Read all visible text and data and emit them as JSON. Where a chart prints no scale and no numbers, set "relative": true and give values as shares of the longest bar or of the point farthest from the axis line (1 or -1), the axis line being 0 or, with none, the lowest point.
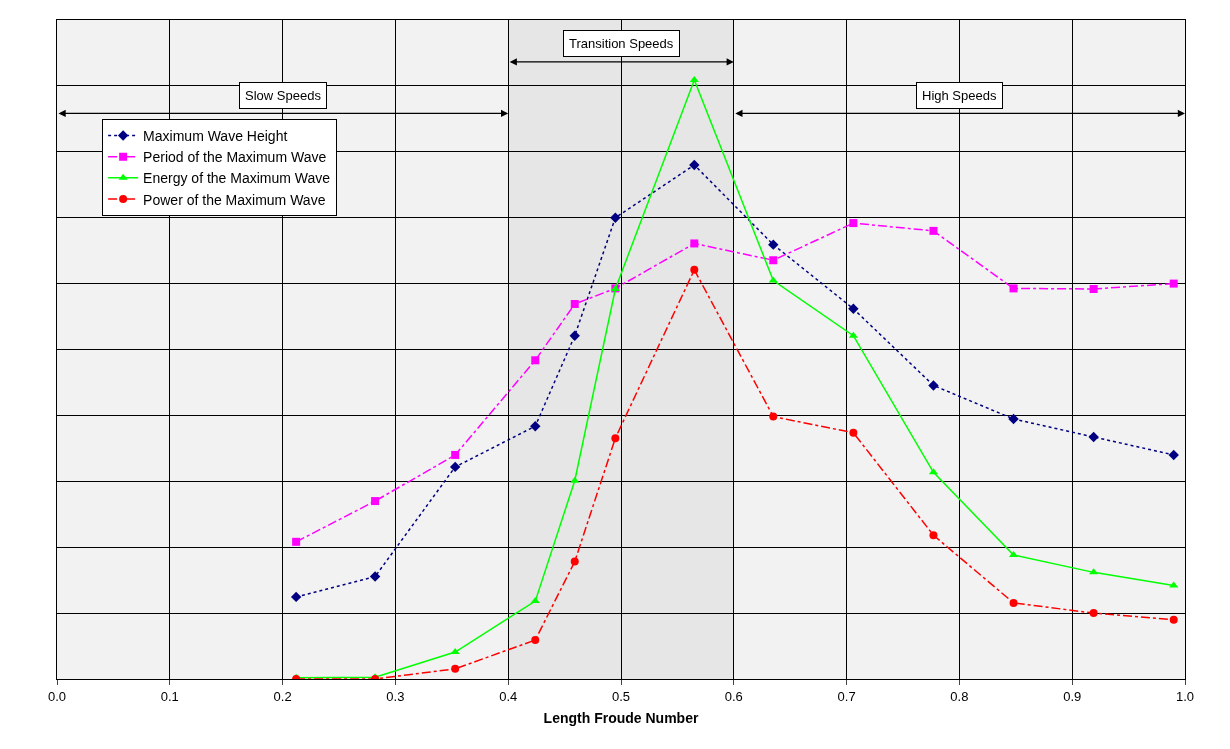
{
  "chart_data": {
    "type": "line",
    "relative": true,
    "xlabel": "Length Froude Number",
    "x": [
      0.212,
      0.282,
      0.353,
      0.424,
      0.459,
      0.495,
      0.565,
      0.635,
      0.706,
      0.777,
      0.848,
      0.919,
      0.99
    ],
    "xlim": [
      0,
      1
    ],
    "xticks": [
      {
        "value": 0,
        "label": "0.0"
      },
      {
        "value": 0.1,
        "label": "0.1"
      },
      {
        "value": 0.2,
        "label": "0.2"
      },
      {
        "value": 0.3,
        "label": "0.3"
      },
      {
        "value": 0.4,
        "label": "0.4"
      },
      {
        "value": 0.5,
        "label": "0.5"
      },
      {
        "value": 0.6,
        "label": "0.6"
      },
      {
        "value": 0.7,
        "label": "0.7"
      },
      {
        "value": 0.8,
        "label": "0.8"
      },
      {
        "value": 0.9,
        "label": "0.9"
      },
      {
        "value": 1.0,
        "label": "1.0"
      }
    ],
    "tick_labels": "x",
    "grid": true,
    "legend": "top left",
    "series": [
      {
        "name": "Maximum Wave Height",
        "color": "#000080",
        "marker": "diamond",
        "line_style": "dotted",
        "values": [
          0.137,
          0.171,
          0.354,
          0.422,
          0.573,
          0.77,
          0.858,
          0.725,
          0.618,
          0.49,
          0.434,
          0.404,
          0.374
        ]
      },
      {
        "name": "Period of the Maximum Wave",
        "color": "#ff00ff",
        "marker": "square",
        "line_style": "dashed",
        "values": [
          0.229,
          0.297,
          0.374,
          0.532,
          0.626,
          0.652,
          0.727,
          0.699,
          0.761,
          0.748,
          0.652,
          0.651,
          0.66
        ]
      },
      {
        "name": "Energy of the Maximum Wave",
        "color": "#00ff00",
        "marker": "triangle",
        "line_style": "solid",
        "values": [
          0.002,
          0.003,
          0.045,
          0.13,
          0.331,
          0.651,
          1,
          0.665,
          0.573,
          0.345,
          0.207,
          0.178,
          0.156
        ]
      },
      {
        "name": "Power of the Maximum Wave",
        "color": "#ff0000",
        "marker": "circle",
        "line_style": "dashed",
        "values": [
          0,
          0,
          0.017,
          0.065,
          0.196,
          0.402,
          0.683,
          0.438,
          0.411,
          0.24,
          0.127,
          0.11,
          0.099
        ]
      }
    ],
    "bands": [
      {
        "axis": "x",
        "from": 0,
        "to": 0.4,
        "label": "Slow Speeds",
        "color": "#f2f2f2"
      },
      {
        "axis": "x",
        "from": 0.4,
        "to": 0.6,
        "label": "Transition Speeds",
        "color": "#e6e6e6"
      },
      {
        "axis": "x",
        "from": 0.6,
        "to": 1.0,
        "label": "High Speeds",
        "color": "#f2f2f2"
      }
    ]
  }
}
